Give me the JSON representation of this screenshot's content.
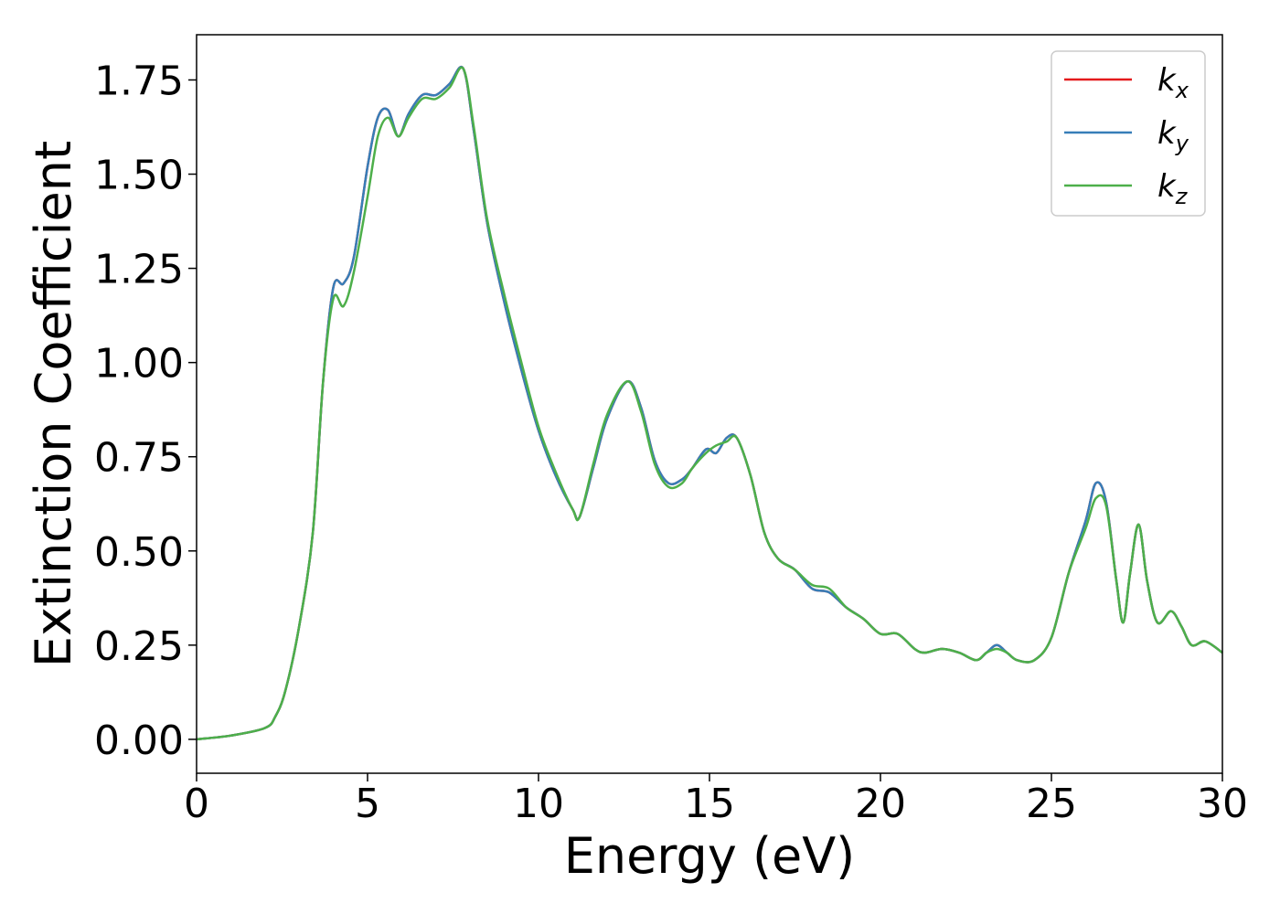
{
  "chart_data": {
    "type": "line",
    "title": "",
    "xlabel": "Energy (eV)",
    "ylabel": "Extinction Coefficient",
    "xlim": [
      0,
      30
    ],
    "ylim": [
      -0.09,
      1.87
    ],
    "xticks": [
      0,
      5,
      10,
      15,
      20,
      25,
      30
    ],
    "xtick_labels": [
      "0",
      "5",
      "10",
      "15",
      "20",
      "25",
      "30"
    ],
    "yticks": [
      0.0,
      0.25,
      0.5,
      0.75,
      1.0,
      1.25,
      1.5,
      1.75
    ],
    "ytick_labels": [
      "0.00",
      "0.25",
      "0.50",
      "0.75",
      "1.00",
      "1.25",
      "1.50",
      "1.75"
    ],
    "grid": false,
    "legend_position": "top-right",
    "series": [
      {
        "name": "k_x",
        "legend_main": "k",
        "legend_sub": "x",
        "color": "#e41a1c",
        "x": [
          0,
          1,
          2,
          2.3,
          2.6,
          3,
          3.4,
          3.7,
          4,
          4.3,
          4.6,
          5,
          5.3,
          5.6,
          5.9,
          6.2,
          6.6,
          7,
          7.4,
          7.8,
          8.1,
          8.5,
          9,
          9.5,
          10,
          10.5,
          11,
          11.2,
          11.6,
          12,
          12.6,
          13,
          13.4,
          13.8,
          14.2,
          14.5,
          14.9,
          15.2,
          15.5,
          15.8,
          16.2,
          16.6,
          17,
          17.5,
          18,
          18.5,
          19,
          19.5,
          20,
          20.5,
          21,
          21.3,
          21.8,
          22.3,
          22.8,
          23.1,
          23.4,
          23.7,
          24,
          24.5,
          25,
          25.5,
          26,
          26.3,
          26.6,
          26.9,
          27.1,
          27.3,
          27.55,
          27.8,
          28.1,
          28.5,
          28.8,
          29.1,
          29.5,
          30
        ],
        "y": [
          0,
          0.01,
          0.03,
          0.06,
          0.13,
          0.3,
          0.55,
          0.95,
          1.2,
          1.21,
          1.28,
          1.52,
          1.65,
          1.67,
          1.6,
          1.66,
          1.71,
          1.71,
          1.74,
          1.78,
          1.62,
          1.37,
          1.16,
          0.98,
          0.82,
          0.7,
          0.61,
          0.59,
          0.72,
          0.85,
          0.95,
          0.88,
          0.74,
          0.68,
          0.69,
          0.72,
          0.77,
          0.76,
          0.8,
          0.8,
          0.7,
          0.55,
          0.48,
          0.45,
          0.4,
          0.39,
          0.35,
          0.32,
          0.28,
          0.28,
          0.24,
          0.23,
          0.24,
          0.23,
          0.21,
          0.23,
          0.25,
          0.23,
          0.21,
          0.21,
          0.27,
          0.44,
          0.58,
          0.68,
          0.63,
          0.42,
          0.31,
          0.44,
          0.57,
          0.42,
          0.31,
          0.34,
          0.3,
          0.25,
          0.26,
          0.23
        ]
      },
      {
        "name": "k_y",
        "legend_main": "k",
        "legend_sub": "y",
        "color": "#377eb8",
        "x": [
          0,
          1,
          2,
          2.3,
          2.6,
          3,
          3.4,
          3.7,
          4,
          4.3,
          4.6,
          5,
          5.3,
          5.6,
          5.9,
          6.2,
          6.6,
          7,
          7.4,
          7.8,
          8.1,
          8.5,
          9,
          9.5,
          10,
          10.5,
          11,
          11.2,
          11.6,
          12,
          12.6,
          13,
          13.4,
          13.8,
          14.2,
          14.5,
          14.9,
          15.2,
          15.5,
          15.8,
          16.2,
          16.6,
          17,
          17.5,
          18,
          18.5,
          19,
          19.5,
          20,
          20.5,
          21,
          21.3,
          21.8,
          22.3,
          22.8,
          23.1,
          23.4,
          23.7,
          24,
          24.5,
          25,
          25.5,
          26,
          26.3,
          26.6,
          26.9,
          27.1,
          27.3,
          27.55,
          27.8,
          28.1,
          28.5,
          28.8,
          29.1,
          29.5,
          30
        ],
        "y": [
          0,
          0.01,
          0.03,
          0.06,
          0.13,
          0.3,
          0.55,
          0.95,
          1.2,
          1.21,
          1.28,
          1.52,
          1.65,
          1.67,
          1.6,
          1.66,
          1.71,
          1.71,
          1.74,
          1.78,
          1.62,
          1.37,
          1.16,
          0.98,
          0.82,
          0.7,
          0.61,
          0.59,
          0.72,
          0.85,
          0.95,
          0.88,
          0.74,
          0.68,
          0.69,
          0.72,
          0.77,
          0.76,
          0.8,
          0.8,
          0.7,
          0.55,
          0.48,
          0.45,
          0.4,
          0.39,
          0.35,
          0.32,
          0.28,
          0.28,
          0.24,
          0.23,
          0.24,
          0.23,
          0.21,
          0.23,
          0.25,
          0.23,
          0.21,
          0.21,
          0.27,
          0.44,
          0.58,
          0.68,
          0.63,
          0.42,
          0.31,
          0.44,
          0.57,
          0.42,
          0.31,
          0.34,
          0.3,
          0.25,
          0.26,
          0.23
        ]
      },
      {
        "name": "k_z",
        "legend_main": "k",
        "legend_sub": "z",
        "color": "#4daf4a",
        "x": [
          0,
          1,
          2,
          2.3,
          2.6,
          3,
          3.4,
          3.7,
          4,
          4.3,
          4.6,
          5,
          5.3,
          5.6,
          5.9,
          6.2,
          6.6,
          7,
          7.4,
          7.8,
          8.1,
          8.5,
          9,
          9.5,
          10,
          10.5,
          11,
          11.2,
          11.6,
          12,
          12.6,
          13,
          13.4,
          13.8,
          14.2,
          14.5,
          14.9,
          15.2,
          15.5,
          15.8,
          16.2,
          16.6,
          17,
          17.5,
          18,
          18.5,
          19,
          19.5,
          20,
          20.5,
          21,
          21.3,
          21.8,
          22.3,
          22.8,
          23.1,
          23.4,
          23.7,
          24,
          24.5,
          25,
          25.5,
          26,
          26.3,
          26.6,
          26.9,
          27.1,
          27.3,
          27.55,
          27.8,
          28.1,
          28.5,
          28.8,
          29.1,
          29.5,
          30
        ],
        "y": [
          0,
          0.01,
          0.03,
          0.06,
          0.13,
          0.3,
          0.55,
          0.95,
          1.17,
          1.15,
          1.24,
          1.44,
          1.6,
          1.65,
          1.6,
          1.65,
          1.7,
          1.7,
          1.73,
          1.78,
          1.63,
          1.38,
          1.18,
          1.0,
          0.83,
          0.71,
          0.61,
          0.59,
          0.73,
          0.86,
          0.95,
          0.87,
          0.73,
          0.67,
          0.68,
          0.72,
          0.76,
          0.78,
          0.79,
          0.8,
          0.7,
          0.55,
          0.48,
          0.45,
          0.41,
          0.4,
          0.35,
          0.32,
          0.28,
          0.28,
          0.24,
          0.23,
          0.24,
          0.23,
          0.21,
          0.23,
          0.24,
          0.23,
          0.21,
          0.21,
          0.27,
          0.44,
          0.56,
          0.64,
          0.62,
          0.42,
          0.31,
          0.44,
          0.57,
          0.42,
          0.31,
          0.34,
          0.3,
          0.25,
          0.26,
          0.23
        ]
      }
    ]
  }
}
